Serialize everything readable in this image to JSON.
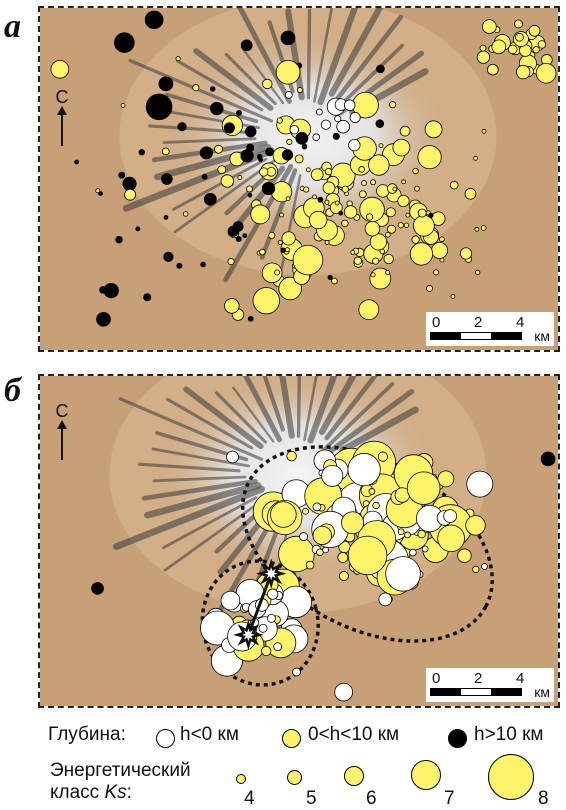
{
  "panels": {
    "a": {
      "letter": "а"
    },
    "b": {
      "letter": "б"
    }
  },
  "north_label": "С",
  "scalebar": {
    "ticks": [
      "0",
      "2",
      "4"
    ],
    "unit": "км"
  },
  "legend": {
    "depth_title": "Глубина:",
    "depth_items": [
      {
        "label": "h<0 км",
        "color": "#ffffff"
      },
      {
        "label": "0<h<10 км",
        "color": "#fff36a"
      },
      {
        "label": "h>10 км",
        "color": "#000000"
      }
    ],
    "class_title_line1": "Энергетический",
    "class_title_line2": "класс",
    "class_title_symbol": "Ks",
    "class_title_suffix": ":",
    "class_items": [
      "4",
      "5",
      "6",
      "7",
      "8"
    ]
  },
  "colors": {
    "terrain": "#c8a077",
    "terrain_light": "#d9b993",
    "snow": "#f4f4f4",
    "ridge": "#3a3a3a",
    "shallow": "#fff36a",
    "deep": "#000000",
    "above": "#ffffff",
    "outline": "#000000"
  },
  "icons": [
    "north-arrow-icon",
    "star-icon"
  ]
}
